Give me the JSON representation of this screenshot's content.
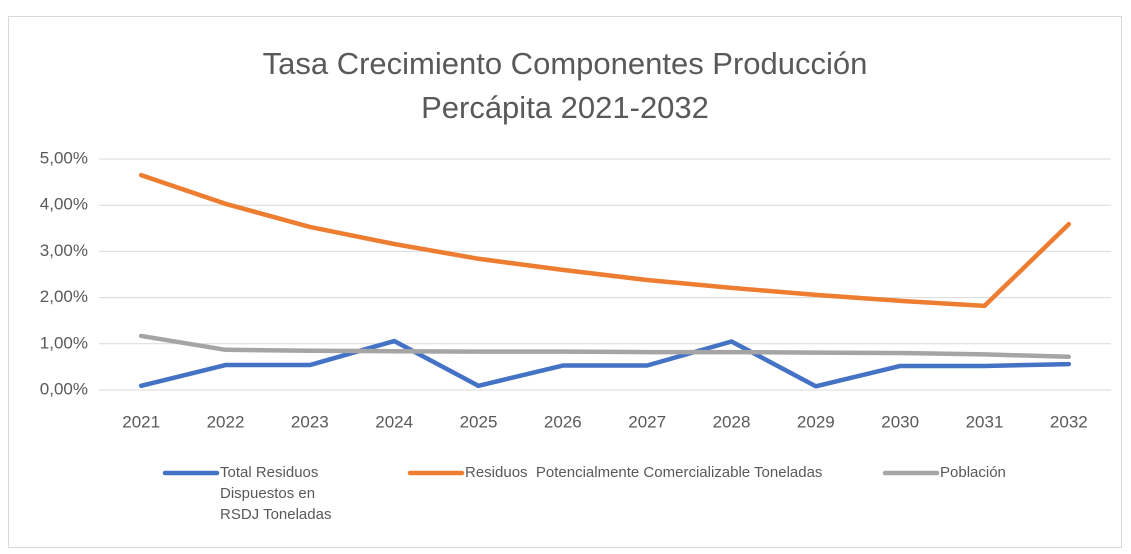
{
  "chart_data": {
    "type": "line",
    "title": "Tasa Crecimiento Componentes Producción Percápita 2021-2032",
    "categories": [
      "2021",
      "2022",
      "2023",
      "2024",
      "2025",
      "2026",
      "2027",
      "2028",
      "2029",
      "2030",
      "2031",
      "2032"
    ],
    "series": [
      {
        "name": "Total Residuos Dispuestos en  RSDJ Toneladas",
        "color": "#4472c4",
        "values": [
          0.09,
          0.54,
          0.54,
          1.06,
          0.09,
          0.53,
          0.53,
          1.05,
          0.08,
          0.52,
          0.52,
          0.56
        ]
      },
      {
        "name": "Residuos  Potencialmente Comercializable Toneladas",
        "color": "#ed7d31",
        "values": [
          4.65,
          4.03,
          3.53,
          3.16,
          2.84,
          2.6,
          2.38,
          2.21,
          2.06,
          1.93,
          1.82,
          3.59
        ]
      },
      {
        "name": "Población",
        "color": "#a5a5a5",
        "values": [
          1.17,
          0.87,
          0.85,
          0.84,
          0.83,
          0.83,
          0.82,
          0.82,
          0.81,
          0.8,
          0.77,
          0.72
        ]
      }
    ],
    "ylim": [
      0,
      5
    ],
    "yticks": [
      {
        "value": 0,
        "label": "0,00%"
      },
      {
        "value": 1,
        "label": "1,00%"
      },
      {
        "value": 2,
        "label": "2,00%"
      },
      {
        "value": 3,
        "label": "3,00%"
      },
      {
        "value": 4,
        "label": "4,00%"
      },
      {
        "value": 5,
        "label": "5,00%"
      }
    ],
    "grid": true,
    "legend": "bottom"
  }
}
